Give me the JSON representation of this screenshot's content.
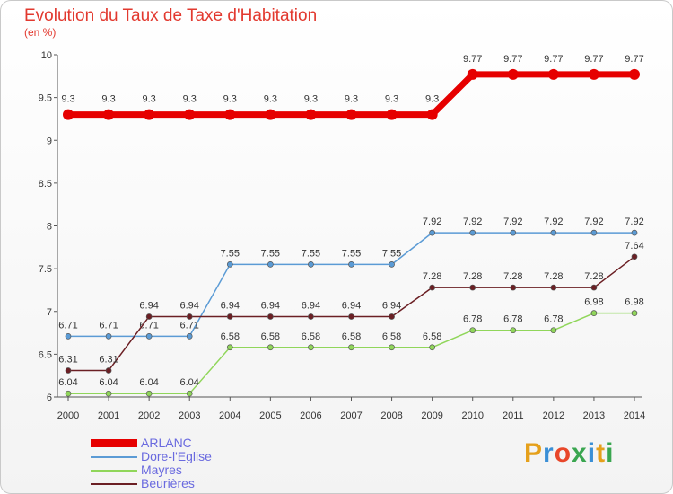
{
  "title": "Evolution du Taux de Taxe d'Habitation",
  "unit_label": "(en %)",
  "logo_text": "Proxiti",
  "logo_colors": [
    "#e5a01b",
    "#3a8fd6",
    "#e8472a",
    "#3aa650",
    "#3a8fd6",
    "#e5a01b",
    "#3aa650"
  ],
  "chart_data": {
    "type": "line",
    "x": [
      "2000",
      "2001",
      "2002",
      "2003",
      "2004",
      "2005",
      "2006",
      "2007",
      "2008",
      "2009",
      "2010",
      "2011",
      "2012",
      "2013",
      "2014"
    ],
    "ylim": [
      6,
      10
    ],
    "yticks": [
      6,
      6.5,
      7,
      7.5,
      8,
      8.5,
      9,
      9.5,
      10
    ],
    "ytick_labels": [
      "6",
      "6.5",
      "7",
      "7.5",
      "8",
      "8.5",
      "9",
      "9.5",
      "10"
    ],
    "grid": false,
    "legend_position": "bottom-left",
    "series": [
      {
        "name": "ARLANC",
        "color": "#e60000",
        "values": [
          9.3,
          9.3,
          9.3,
          9.3,
          9.3,
          9.3,
          9.3,
          9.3,
          9.3,
          9.3,
          9.77,
          9.77,
          9.77,
          9.77,
          9.77
        ],
        "labels": [
          "9.3",
          "9.3",
          "9.3",
          "9.3",
          "9.3",
          "9.3",
          "9.3",
          "9.3",
          "9.3",
          "9.3",
          "9.77",
          "9.77",
          "9.77",
          "9.77",
          "9.77"
        ]
      },
      {
        "name": "Dore-l'Eglise",
        "color": "#5b9bd5",
        "values": [
          6.71,
          6.71,
          6.71,
          6.71,
          7.55,
          7.55,
          7.55,
          7.55,
          7.55,
          7.92,
          7.92,
          7.92,
          7.92,
          7.92,
          7.92
        ],
        "labels": [
          "6.71",
          "6.71",
          "6.71",
          "6.71",
          "7.55",
          "7.55",
          "7.55",
          "7.55",
          "7.55",
          "7.92",
          "7.92",
          "7.92",
          "7.92",
          "7.92",
          "7.92"
        ]
      },
      {
        "name": "Mayres",
        "color": "#90d65a",
        "values": [
          6.04,
          6.04,
          6.04,
          6.04,
          6.58,
          6.58,
          6.58,
          6.58,
          6.58,
          6.58,
          6.78,
          6.78,
          6.78,
          6.98,
          6.98
        ],
        "labels": [
          "6.04",
          "6.04",
          "6.04",
          "6.04",
          "6.58",
          "6.58",
          "6.58",
          "6.58",
          "6.58",
          "6.58",
          "6.78",
          "6.78",
          "6.78",
          "6.98",
          "6.98"
        ]
      },
      {
        "name": "Beurières",
        "color": "#6b1f24",
        "values": [
          6.31,
          6.31,
          6.94,
          6.94,
          6.94,
          6.94,
          6.94,
          6.94,
          6.94,
          7.28,
          7.28,
          7.28,
          7.28,
          7.28,
          7.64
        ],
        "labels": [
          "6.31",
          "6.31",
          "6.94",
          "6.94",
          "6.94",
          "6.94",
          "6.94",
          "6.94",
          "6.94",
          "7.28",
          "7.28",
          "7.28",
          "7.28",
          "7.28",
          "7.64"
        ]
      }
    ]
  }
}
